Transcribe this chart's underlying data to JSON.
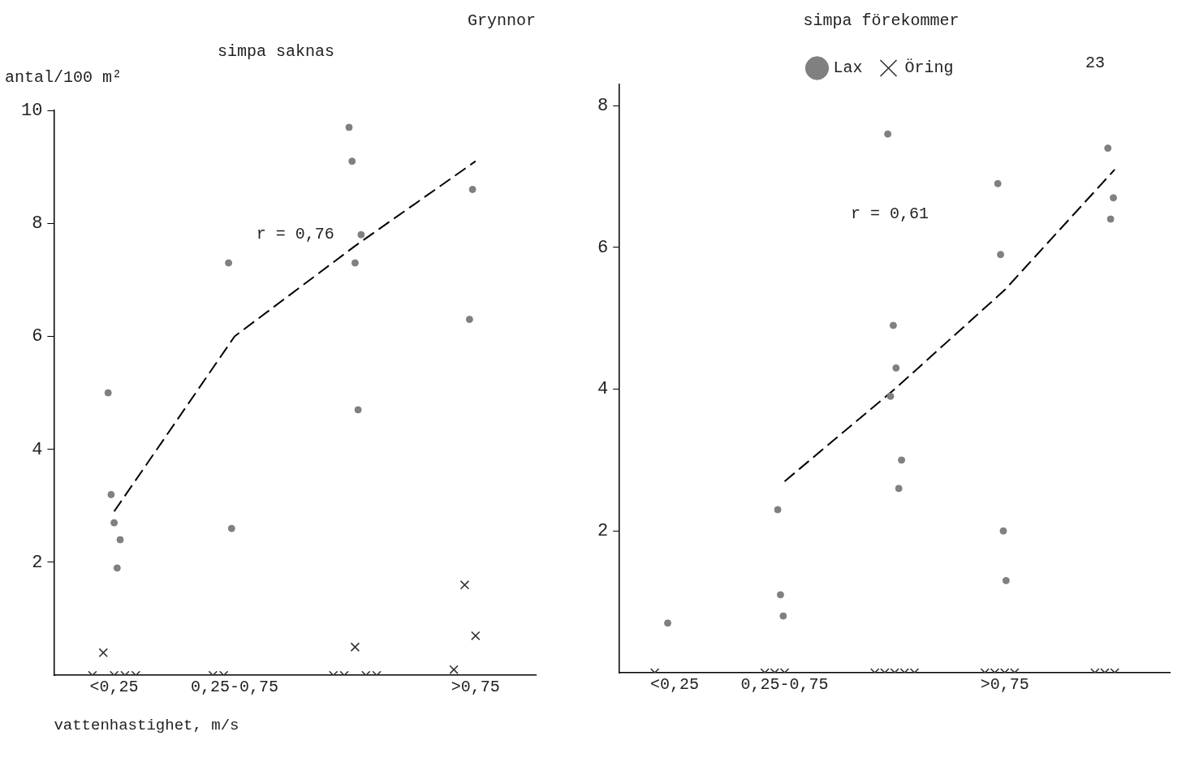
{
  "chart_data": [
    {
      "type": "scatter",
      "title": "Grynnor",
      "subtitle": "simpa saknas",
      "xlabel": "vattenhastighet, m/s",
      "ylabel": "antal/100 m²",
      "annotations": [
        "r = 0,76"
      ],
      "categories": [
        "<0,25",
        "0,25-0,75",
        null,
        ">0,75"
      ],
      "ylim": [
        0,
        10
      ],
      "yticks": [
        2,
        4,
        6,
        8,
        10
      ],
      "grid": false,
      "legend": false,
      "series": [
        {
          "marker": "circle",
          "color": "#808080",
          "values": [
            5.0,
            7.3,
            9.7,
            6.3
          ]
        },
        {
          "marker": "circle",
          "color": "#808080",
          "values": [
            3.2,
            2.6,
            9.1,
            8.6
          ]
        },
        {
          "marker": "circle",
          "color": "#808080",
          "values": [
            2.7,
            null,
            7.3,
            null
          ]
        },
        {
          "marker": "circle",
          "color": "#808080",
          "values": [
            1.9,
            null,
            4.7,
            null
          ]
        },
        {
          "marker": "circle",
          "color": "#808080",
          "values": [
            2.4,
            null,
            7.8,
            null
          ]
        },
        {
          "marker": "cross",
          "color": "#333333",
          "values": [
            0,
            0,
            0,
            0.1
          ]
        },
        {
          "marker": "cross",
          "color": "#333333",
          "values": [
            0.4,
            0,
            0,
            1.6
          ]
        },
        {
          "marker": "cross",
          "color": "#333333",
          "values": [
            0,
            null,
            0.5,
            0.7
          ]
        },
        {
          "marker": "cross",
          "color": "#333333",
          "values": [
            0,
            null,
            0,
            null
          ]
        },
        {
          "marker": "cross",
          "color": "#333333",
          "values": [
            0,
            null,
            0,
            null
          ]
        },
        {
          "type": "line",
          "marker": "none",
          "line_style": "dashed",
          "color": "#000000",
          "values": [
            2.9,
            6.0,
            7.6,
            9.1
          ]
        }
      ]
    },
    {
      "type": "scatter",
      "title": "simpa förekommer",
      "annotations": [
        "r = 0,61",
        "23"
      ],
      "categories": [
        "<0,25",
        "0,25-0,75",
        null,
        ">0,75",
        null
      ],
      "ylim": [
        0,
        8.3
      ],
      "yticks": [
        2,
        4,
        6,
        8
      ],
      "grid": false,
      "legend": "top",
      "series": [
        {
          "name": "Lax",
          "marker": "circle",
          "color": "#808080",
          "values": [
            0.7,
            2.3,
            7.6,
            6.9,
            7.4
          ]
        },
        {
          "marker": "circle",
          "color": "#808080",
          "values": [
            null,
            1.1,
            3.9,
            5.9,
            6.4
          ]
        },
        {
          "marker": "circle",
          "color": "#808080",
          "values": [
            null,
            0.8,
            4.9,
            2.0,
            6.7
          ]
        },
        {
          "marker": "circle",
          "color": "#808080",
          "values": [
            null,
            null,
            4.3,
            1.3,
            null
          ]
        },
        {
          "marker": "circle",
          "color": "#808080",
          "values": [
            null,
            null,
            2.6,
            null,
            null
          ]
        },
        {
          "marker": "circle",
          "color": "#808080",
          "values": [
            null,
            null,
            3.0,
            null,
            null
          ]
        },
        {
          "name": "Öring",
          "marker": "cross",
          "color": "#333333",
          "values": [
            0,
            0,
            0,
            0,
            0
          ]
        },
        {
          "marker": "cross",
          "color": "#333333",
          "values": [
            null,
            0,
            0,
            0,
            0
          ]
        },
        {
          "marker": "cross",
          "color": "#333333",
          "values": [
            null,
            0,
            0,
            0,
            0
          ]
        },
        {
          "marker": "cross",
          "color": "#333333",
          "values": [
            null,
            null,
            0,
            0,
            null
          ]
        },
        {
          "marker": "cross",
          "color": "#333333",
          "values": [
            null,
            null,
            0,
            null,
            null
          ]
        },
        {
          "type": "line",
          "marker": "none",
          "line_style": "dashed",
          "color": "#000000",
          "values": [
            null,
            2.7,
            4.0,
            5.4,
            7.1
          ]
        }
      ]
    }
  ]
}
